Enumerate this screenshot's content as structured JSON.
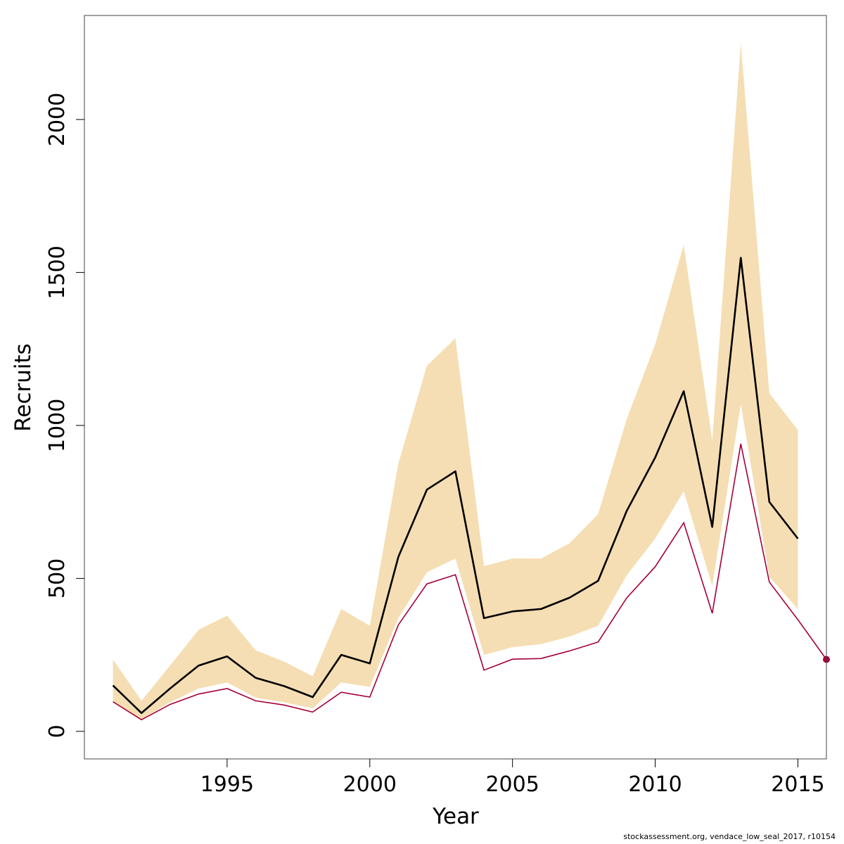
{
  "chart_data": {
    "type": "line",
    "title": "",
    "xlabel": "Year",
    "ylabel": "Recruits",
    "xlim": [
      1990,
      2016
    ],
    "ylim": [
      -90,
      2340
    ],
    "x_ticks": [
      1995,
      2000,
      2005,
      2010,
      2015
    ],
    "y_ticks": [
      0,
      500,
      1000,
      1500,
      2000
    ],
    "grid": false,
    "legend": "none",
    "colors": {
      "band": "#f5deb3",
      "estimate": "#000000",
      "lower_line": "#a50036"
    },
    "series": [
      {
        "kind": "estimate",
        "x": [
          1991,
          1992,
          1993,
          1994,
          1995,
          1996,
          1997,
          1998,
          1999,
          2000,
          2001,
          2002,
          2003,
          2004,
          2005,
          2006,
          2007,
          2008,
          2009,
          2010,
          2011,
          2012,
          2013,
          2014,
          2015
        ],
        "values": [
          150,
          60,
          140,
          215,
          245,
          175,
          148,
          112,
          250,
          222,
          570,
          790,
          850,
          370,
          392,
          400,
          437,
          492,
          720,
          895,
          1112,
          668,
          1548,
          750,
          630
        ]
      },
      {
        "kind": "interval_upper",
        "x": [
          1991,
          1992,
          1993,
          1994,
          1995,
          1996,
          1997,
          1998,
          1999,
          2000,
          2001,
          2002,
          2003,
          2004,
          2005,
          2006,
          2007,
          2008,
          2009,
          2010,
          2011,
          2012,
          2013,
          2014,
          2015
        ],
        "values": [
          235,
          100,
          215,
          332,
          378,
          265,
          228,
          180,
          400,
          345,
          875,
          1195,
          1285,
          540,
          565,
          565,
          615,
          710,
          1020,
          1265,
          1590,
          950,
          2250,
          1105,
          985
        ]
      },
      {
        "kind": "interval_lower",
        "x": [
          1991,
          1992,
          1993,
          1994,
          1995,
          1996,
          1997,
          1998,
          1999,
          2000,
          2001,
          2002,
          2003,
          2004,
          2005,
          2006,
          2007,
          2008,
          2009,
          2010,
          2011,
          2012,
          2013,
          2014,
          2015
        ],
        "values": [
          100,
          40,
          95,
          140,
          160,
          110,
          95,
          75,
          160,
          145,
          370,
          520,
          565,
          250,
          275,
          285,
          310,
          345,
          510,
          630,
          785,
          475,
          1070,
          505,
          400
        ]
      },
      {
        "kind": "lower_line",
        "x": [
          1991,
          1992,
          1993,
          1994,
          1995,
          1996,
          1997,
          1998,
          1999,
          2000,
          2001,
          2002,
          2003,
          2004,
          2005,
          2006,
          2007,
          2008,
          2009,
          2010,
          2011,
          2012,
          2013,
          2014,
          2015,
          2016
        ],
        "values": [
          97,
          38,
          88,
          122,
          140,
          100,
          86,
          63,
          128,
          112,
          348,
          482,
          512,
          200,
          236,
          238,
          263,
          292,
          436,
          538,
          682,
          386,
          940,
          488,
          365,
          235
        ]
      }
    ]
  },
  "footnote": "stockassessment.org, vendace_low_seal_2017, r10154"
}
